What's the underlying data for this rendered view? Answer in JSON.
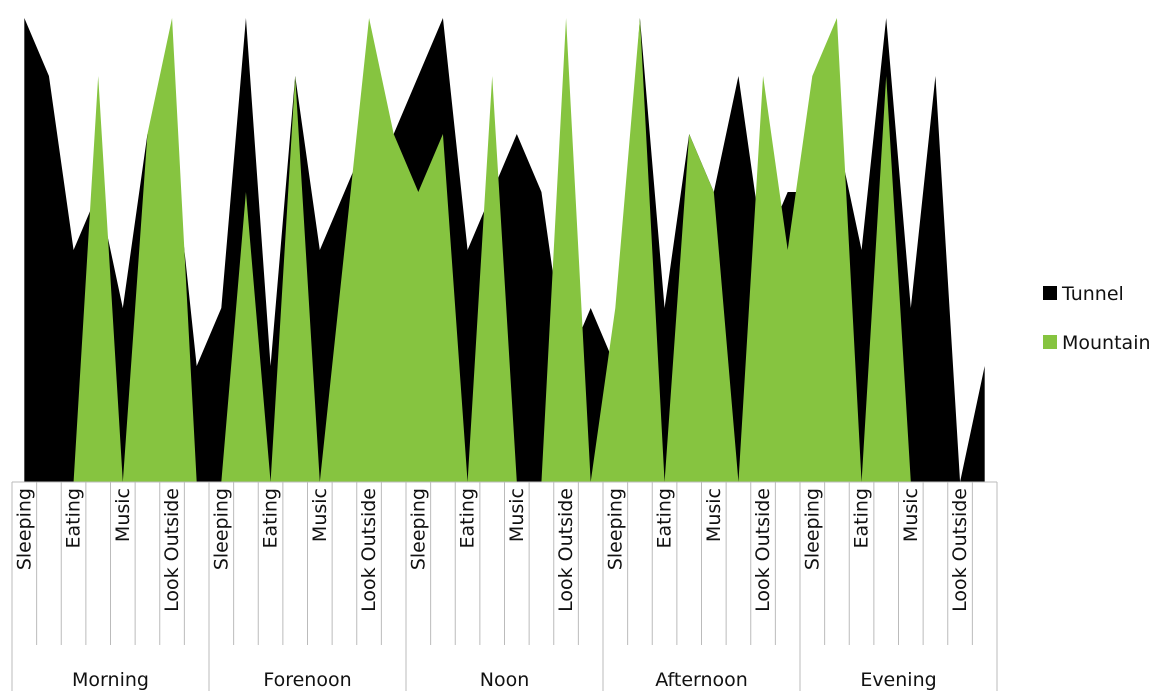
{
  "chart_data": {
    "type": "area",
    "categories": [
      "Sleeping",
      null,
      "Eating",
      null,
      "Music",
      null,
      "Look Outside",
      null,
      "Sleeping",
      null,
      "Eating",
      null,
      "Music",
      null,
      "Look Outside",
      null,
      "Sleeping",
      null,
      "Eating",
      null,
      "Music",
      null,
      "Look Outside",
      null,
      "Sleeping",
      null,
      "Eating",
      null,
      "Music",
      null,
      "Look Outside",
      null,
      "Sleeping",
      null,
      "Eating",
      null,
      "Music",
      null,
      "Look Outside",
      null
    ],
    "groups": [
      "Morning",
      "Forenoon",
      "Noon",
      "Afternoon",
      "Evening"
    ],
    "series": [
      {
        "name": "Tunnel",
        "color": "#000000",
        "values": [
          8,
          7,
          4,
          5,
          3,
          6,
          6,
          2,
          3,
          8,
          2,
          7,
          4,
          5,
          6,
          6,
          7,
          8,
          4,
          5,
          6,
          5,
          2,
          3,
          2,
          8,
          3,
          6,
          5,
          7,
          4,
          5,
          5,
          6,
          4,
          8,
          3,
          7,
          0,
          2
        ]
      },
      {
        "name": "Mountain",
        "color": "#86c440",
        "values": [
          0,
          0,
          0,
          7,
          0,
          6,
          8,
          0,
          0,
          5,
          0,
          7,
          0,
          4,
          8,
          6,
          5,
          6,
          0,
          7,
          0,
          0,
          8,
          0,
          3,
          8,
          0,
          6,
          5,
          0,
          7,
          4,
          7,
          8,
          0,
          7,
          0,
          0,
          0,
          0
        ]
      }
    ],
    "legend": "right"
  }
}
